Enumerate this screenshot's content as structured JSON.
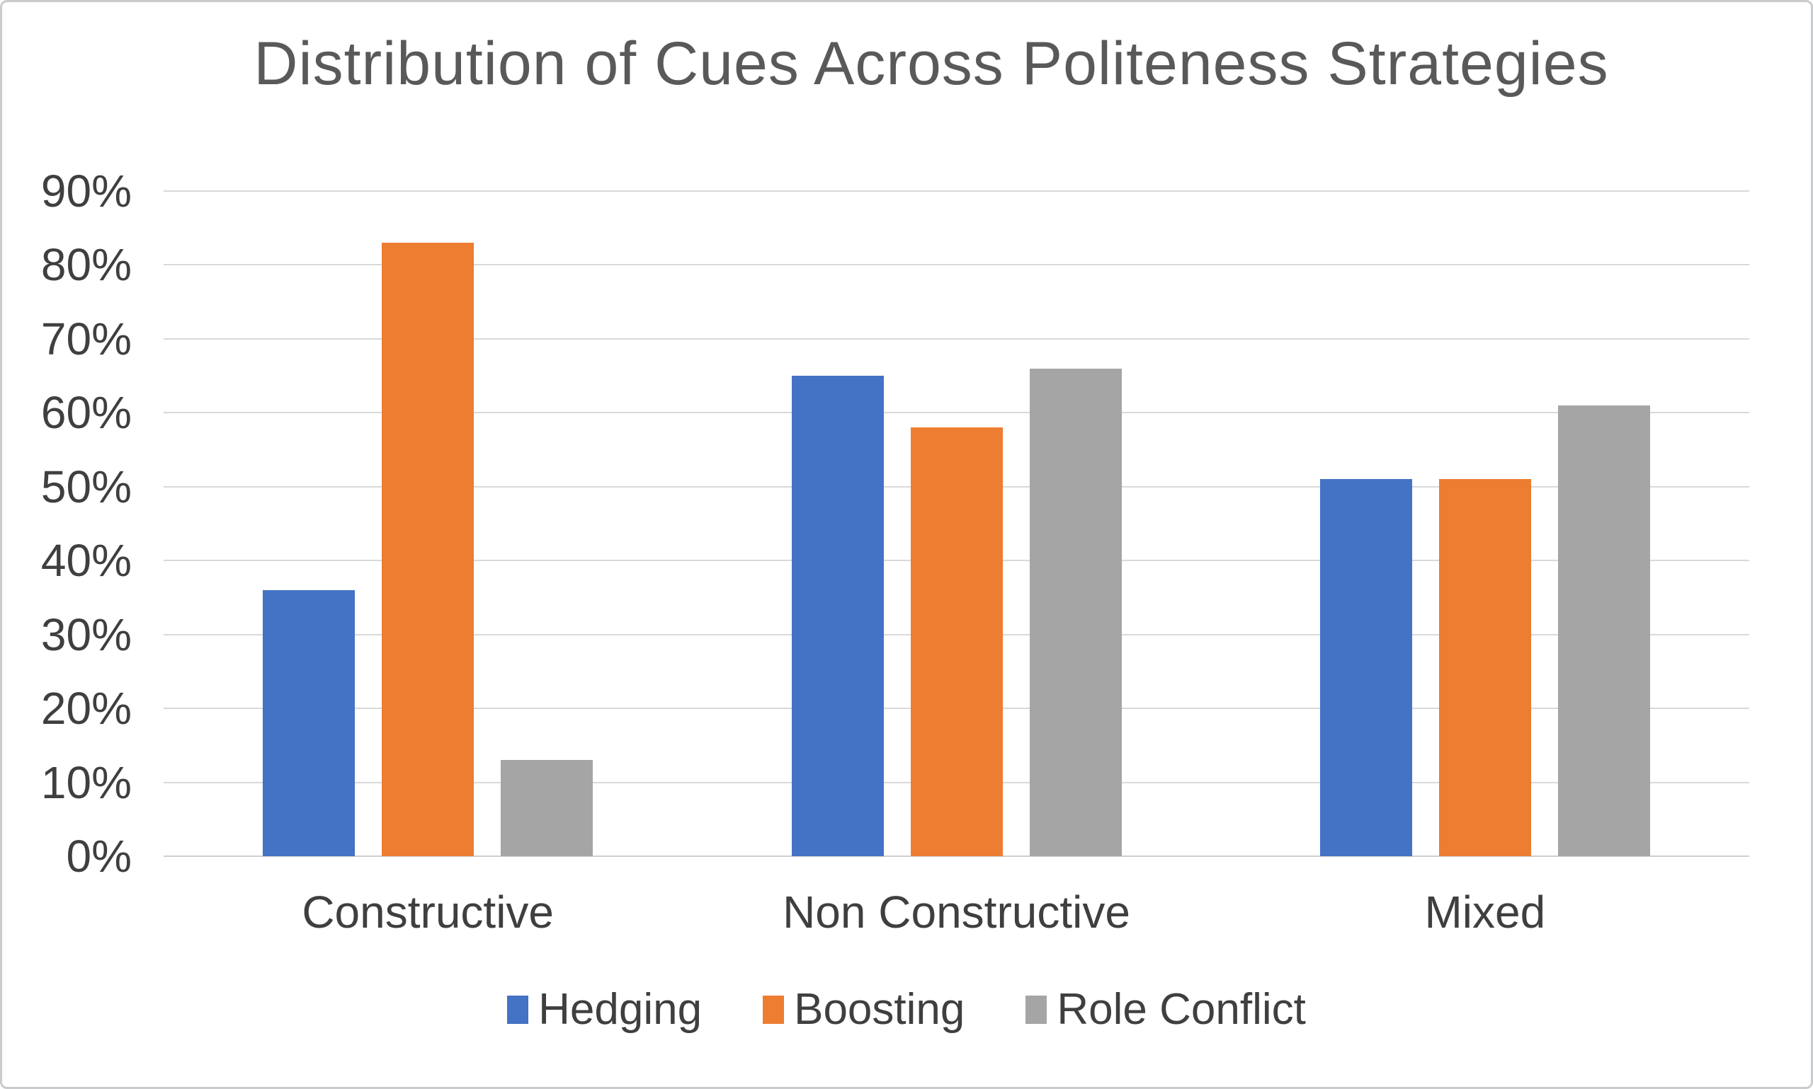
{
  "chart_data": {
    "type": "bar",
    "title": "Distribution of Cues Across Politeness Strategies",
    "categories": [
      "Constructive",
      "Non Constructive",
      "Mixed"
    ],
    "series": [
      {
        "name": "Hedging",
        "color": "#4472C4",
        "values": [
          36,
          65,
          51
        ]
      },
      {
        "name": "Boosting",
        "color": "#ED7D31",
        "values": [
          83,
          58,
          51
        ]
      },
      {
        "name": "Role Conflict",
        "color": "#A5A5A5",
        "values": [
          13,
          66,
          61
        ]
      }
    ],
    "xlabel": "",
    "ylabel": "",
    "ylim": [
      0,
      90
    ],
    "yticks": [
      {
        "value": 0,
        "label": "0%"
      },
      {
        "value": 10,
        "label": "10%"
      },
      {
        "value": 20,
        "label": "20%"
      },
      {
        "value": 30,
        "label": "30%"
      },
      {
        "value": 40,
        "label": "40%"
      },
      {
        "value": 50,
        "label": "50%"
      },
      {
        "value": 60,
        "label": "60%"
      },
      {
        "value": 70,
        "label": "70%"
      },
      {
        "value": 80,
        "label": "80%"
      },
      {
        "value": 90,
        "label": "90%"
      }
    ],
    "grid": "horizontal",
    "legend_position": "bottom"
  },
  "colors": {
    "gridline": "#D9D9D9",
    "axis_baseline": "#CFCFCF",
    "text": "#3F3F3F",
    "title_text": "#595959",
    "frame_border": "#C9CBCD",
    "background": "#FFFFFF"
  }
}
